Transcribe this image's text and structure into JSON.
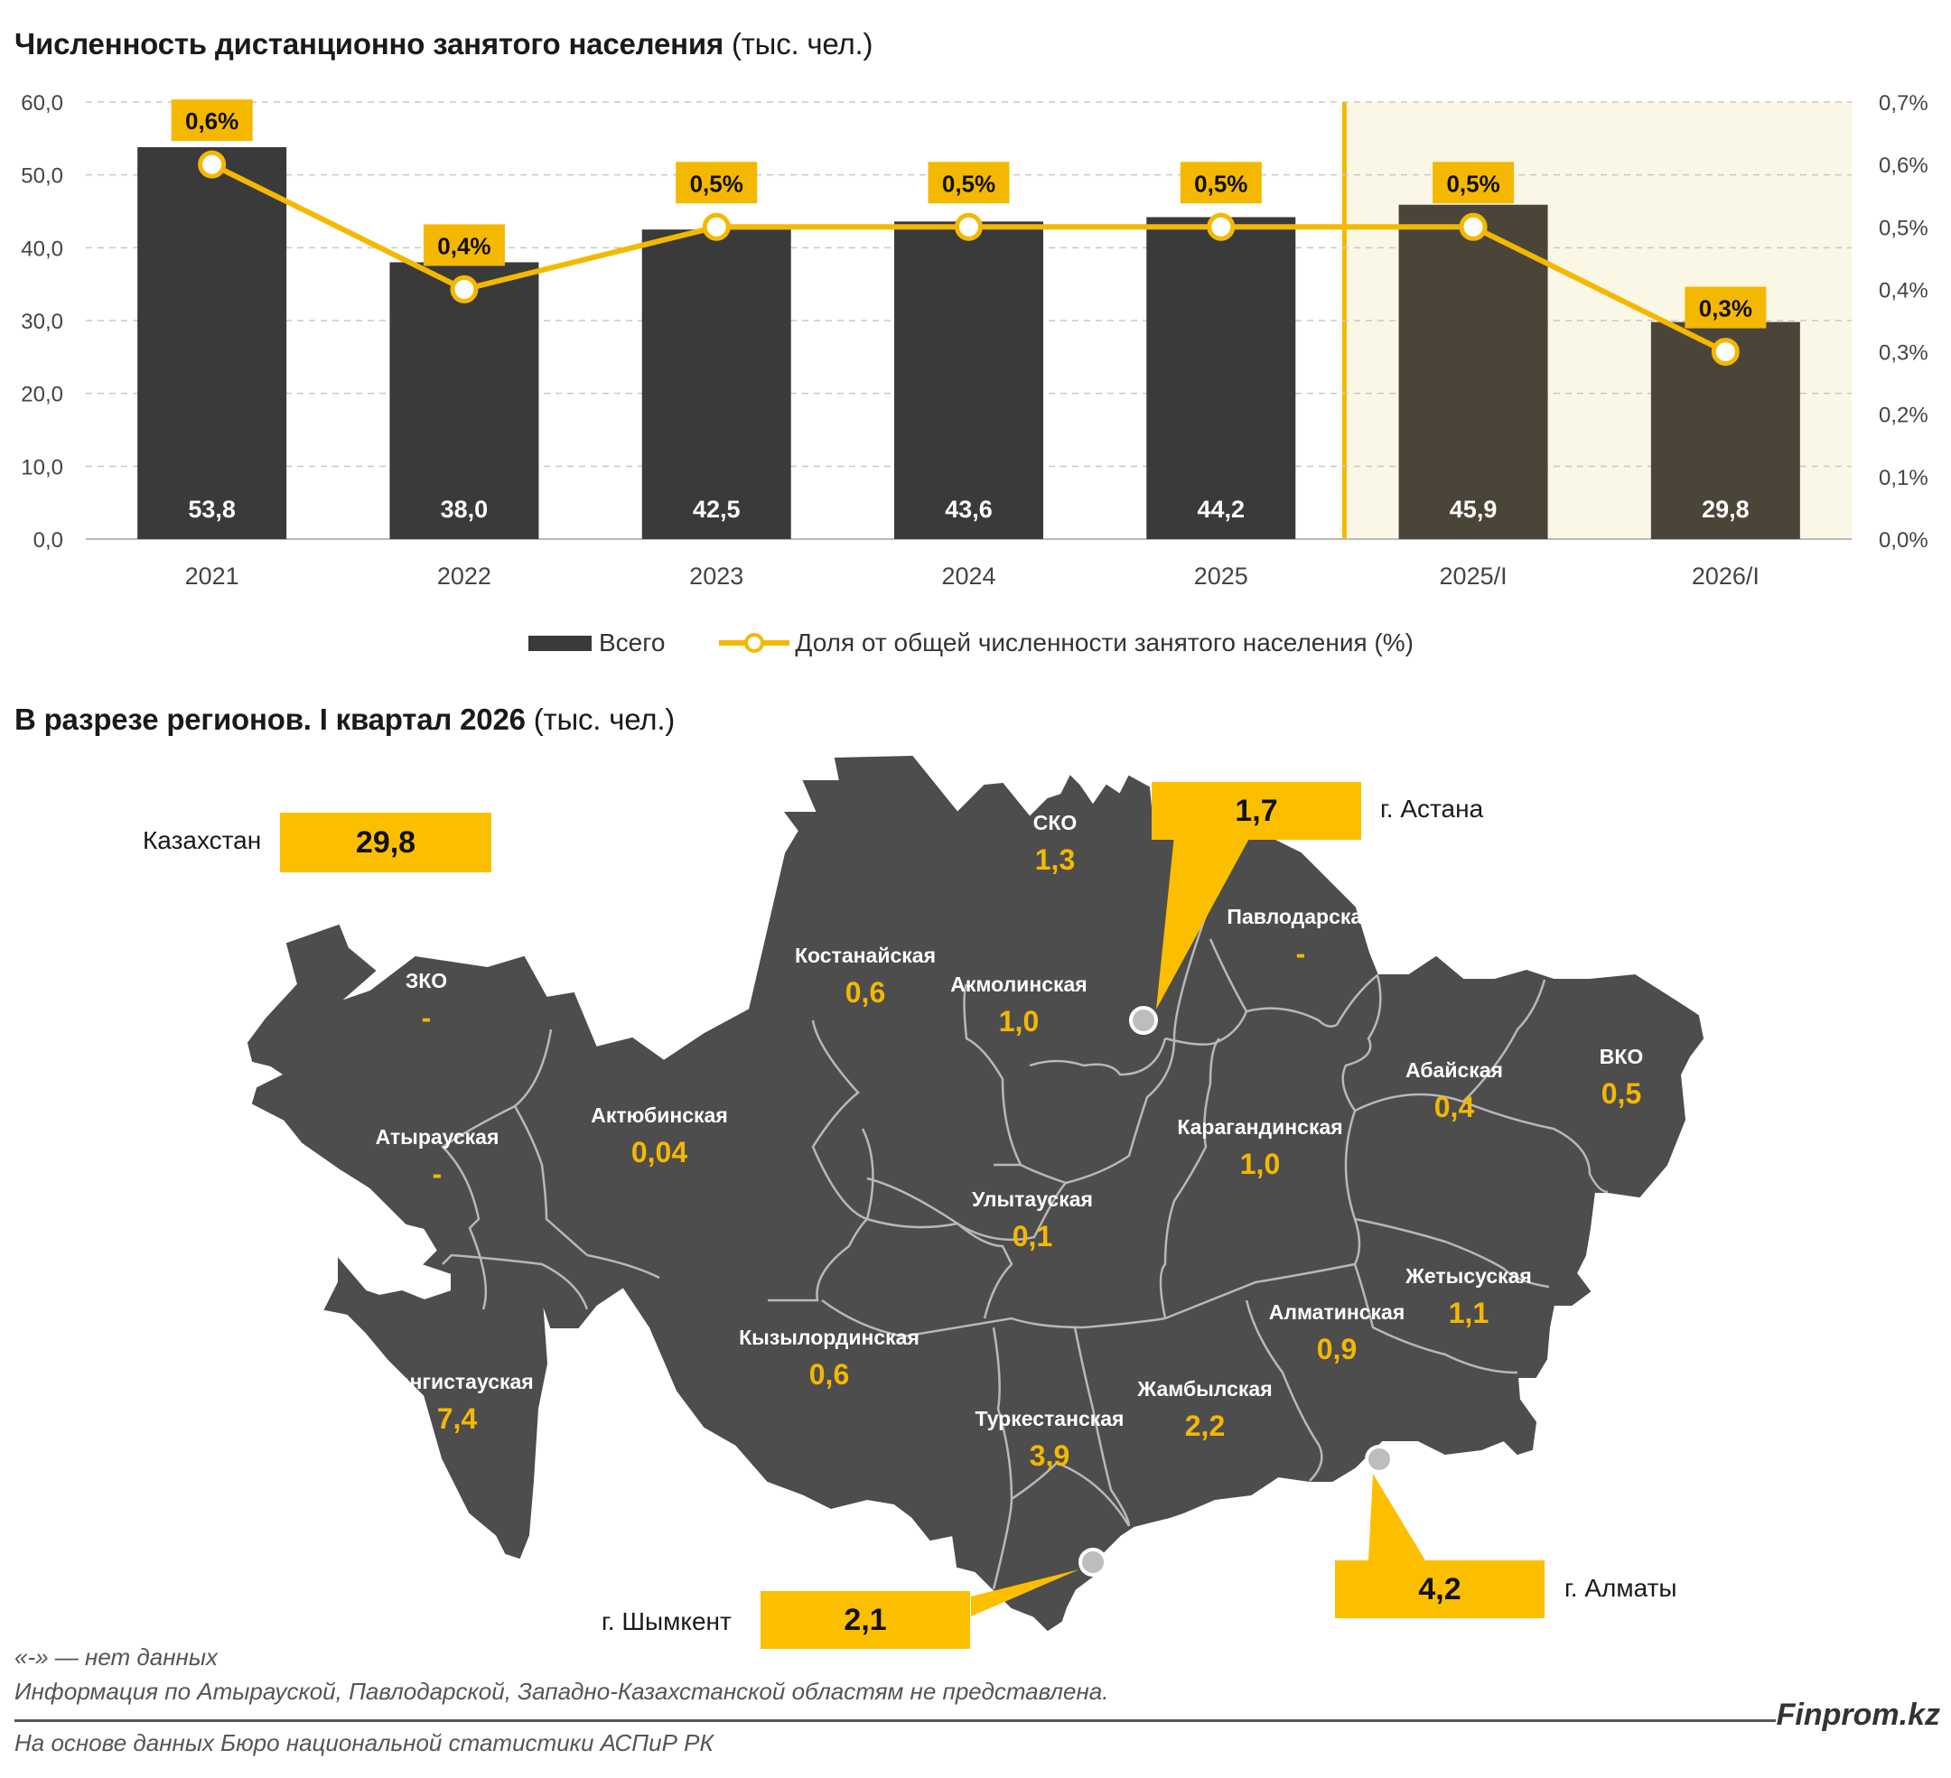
{
  "chart": {
    "title": "Численность дистанционно занятого населения",
    "title_unit": "(тыс. чел.)"
  },
  "chart_data": {
    "type": "bar",
    "categories": [
      "2021",
      "2022",
      "2023",
      "2024",
      "2025",
      "2025/I",
      "2026/I"
    ],
    "series": [
      {
        "name": "Всего",
        "type": "bar",
        "axis": "left",
        "values": [
          53.8,
          38.0,
          42.5,
          43.6,
          44.2,
          45.9,
          29.8
        ],
        "labels": [
          "53,8",
          "38,0",
          "42,5",
          "43,6",
          "44,2",
          "45,9",
          "29,8"
        ]
      },
      {
        "name": "Доля от общей численности занятого населения (%)",
        "type": "line",
        "axis": "right",
        "values": [
          0.6,
          0.4,
          0.5,
          0.5,
          0.5,
          0.5,
          0.3
        ],
        "labels": [
          "0,6%",
          "0,4%",
          "0,5%",
          "0,5%",
          "0,5%",
          "0,5%",
          "0,3%"
        ]
      }
    ],
    "ylim_left": [
      0,
      60
    ],
    "yticks_left": [
      "0,0",
      "10,0",
      "20,0",
      "30,0",
      "40,0",
      "50,0",
      "60,0"
    ],
    "ylim_right": [
      0,
      0.7
    ],
    "yticks_right": [
      "0,0%",
      "0,1%",
      "0,2%",
      "0,3%",
      "0,4%",
      "0,5%",
      "0,6%",
      "0,7%"
    ],
    "highlighted_categories": [
      "2025/I",
      "2026/I"
    ],
    "grid": "horizontal dashed",
    "legend": "bottom-center",
    "colors": {
      "bar": "#3a3a3a",
      "bar_highlighted": "#4a4538",
      "line": "#f5b800",
      "highlight_bg": "#fbf7e6"
    }
  },
  "map": {
    "title": "В разрезе регионов. I квартал 2026",
    "title_unit": "(тыс. чел.)",
    "total_label": "Казахстан",
    "total_value": "29,8",
    "regions": [
      {
        "name": "СКО",
        "value": "1,3"
      },
      {
        "name": "Павлодарская",
        "value": "-"
      },
      {
        "name": "Костанайская",
        "value": "0,6"
      },
      {
        "name": "Акмолинская",
        "value": "1,0"
      },
      {
        "name": "ЗКО",
        "value": "-"
      },
      {
        "name": "Актюбинская",
        "value": "0,04"
      },
      {
        "name": "Атырауская",
        "value": "-"
      },
      {
        "name": "Абайская",
        "value": "0,4"
      },
      {
        "name": "ВКО",
        "value": "0,5"
      },
      {
        "name": "Карагандинская",
        "value": "1,0"
      },
      {
        "name": "Улытауская",
        "value": "0,1"
      },
      {
        "name": "Жетысуская",
        "value": "1,1"
      },
      {
        "name": "Алматинская",
        "value": "0,9"
      },
      {
        "name": "Кызылординская",
        "value": "0,6"
      },
      {
        "name": "Мангистауская",
        "value": "7,4"
      },
      {
        "name": "Жамбылская",
        "value": "2,2"
      },
      {
        "name": "Туркестанская",
        "value": "3,9"
      }
    ],
    "cities": [
      {
        "name": "г. Астана",
        "value": "1,7"
      },
      {
        "name": "г. Алматы",
        "value": "4,2"
      },
      {
        "name": "г. Шымкент",
        "value": "2,1"
      }
    ],
    "colors": {
      "land": "#4d4d4d",
      "border": "#b8b8b8",
      "value": "#f5b800",
      "callout": "#fbbf00"
    }
  },
  "footer": {
    "note1": "«-» — нет данных",
    "note2": "Информация по Атырауской, Павлодарской, Западно-Казахстанской областям не представлена.",
    "source": "На основе данных Бюро национальной статистики АСПиР РК",
    "brand": "Finprom.kz"
  }
}
